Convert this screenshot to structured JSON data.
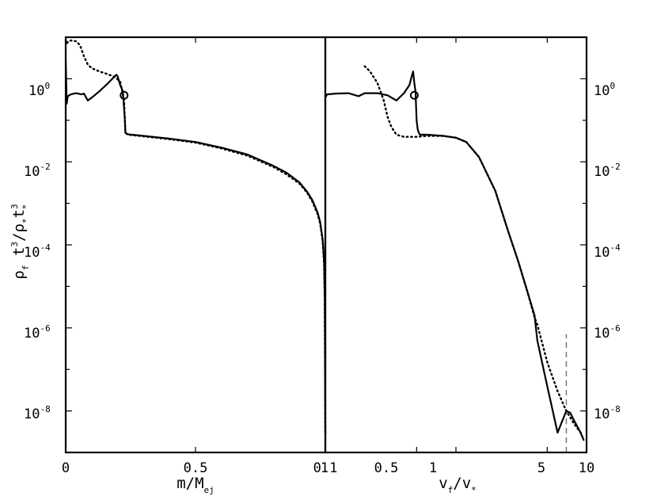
{
  "chart_data": [
    {
      "type": "line",
      "panel": "left",
      "xlabel": "m/M",
      "xlabel_sub": "ej",
      "ylabel": "ρ_f t^3/ρ_* t^3_*",
      "x_scale": "linear",
      "y_scale": "log",
      "xlim": [
        0,
        1
      ],
      "ylim": [
        1e-09,
        10
      ],
      "x_ticks": [
        {
          "value": 0,
          "label": "0"
        },
        {
          "value": 0.5,
          "label": "0.5"
        },
        {
          "value": 1,
          "label": "1"
        }
      ],
      "y_ticks": [
        {
          "value": 1,
          "base": "10",
          "exp": "0"
        },
        {
          "value": 0.01,
          "base": "10",
          "exp": "-2"
        },
        {
          "value": 0.0001,
          "base": "10",
          "exp": "-4"
        },
        {
          "value": 1e-06,
          "base": "10",
          "exp": "-6"
        },
        {
          "value": 1e-08,
          "base": "10",
          "exp": "-8"
        }
      ],
      "series": [
        {
          "style": "solid",
          "color": "#000000",
          "x": [
            0.0,
            0.004,
            0.008,
            0.02,
            0.04,
            0.06,
            0.07,
            0.085,
            0.1,
            0.13,
            0.16,
            0.18,
            0.195,
            0.2,
            0.205,
            0.21,
            0.22,
            0.228,
            0.23,
            0.24,
            0.3,
            0.4,
            0.5,
            0.6,
            0.7,
            0.8,
            0.85,
            0.9,
            0.93,
            0.95,
            0.97,
            0.98,
            0.99,
            0.995,
            0.998,
            1.0,
            1.001
          ],
          "y": [
            3.0,
            0.25,
            0.38,
            0.42,
            0.45,
            0.42,
            0.44,
            0.3,
            0.35,
            0.5,
            0.75,
            1.0,
            1.25,
            1.15,
            0.9,
            0.7,
            0.5,
            0.1,
            0.05,
            0.046,
            0.042,
            0.036,
            0.03,
            0.022,
            0.015,
            0.008,
            0.0055,
            0.0032,
            0.0019,
            0.0012,
            0.0006,
            0.00036,
            0.00013,
            4e-05,
            5e-06,
            3e-09,
            3e-09
          ]
        },
        {
          "style": "dotted",
          "color": "#000000",
          "x": [
            0.0,
            0.004,
            0.01,
            0.02,
            0.04,
            0.055,
            0.07,
            0.085,
            0.1,
            0.13,
            0.16,
            0.19,
            0.21,
            0.225,
            0.23,
            0.24,
            0.3,
            0.4,
            0.5,
            0.6,
            0.7,
            0.8,
            0.85,
            0.9,
            0.93,
            0.95,
            0.97,
            0.98,
            0.99,
            0.995,
            0.998,
            1.0
          ],
          "y": [
            8.5,
            7.0,
            8.0,
            8.4,
            8.0,
            6.5,
            3.5,
            2.2,
            1.8,
            1.5,
            1.3,
            1.1,
            0.85,
            0.3,
            0.05,
            0.045,
            0.041,
            0.035,
            0.029,
            0.021,
            0.014,
            0.0075,
            0.005,
            0.003,
            0.0018,
            0.0011,
            0.00055,
            0.00033,
            0.00012,
            3.5e-05,
            4e-06,
            3e-09
          ]
        }
      ],
      "markers": [
        {
          "shape": "circle",
          "x": 0.225,
          "y": 0.4
        }
      ]
    },
    {
      "type": "line",
      "panel": "right",
      "xlabel": "v",
      "xlabel_sub_1": "f",
      "xlabel_mid": "/v",
      "xlabel_sub_2": "*",
      "x_scale": "log",
      "y_scale": "log",
      "xlim": [
        0.1,
        10
      ],
      "ylim": [
        1e-09,
        10
      ],
      "x_ticks": [
        {
          "value": 0.1,
          "label": "0.1"
        },
        {
          "value": 0.5,
          "label": "0.5"
        },
        {
          "value": 1,
          "label": "1"
        },
        {
          "value": 5,
          "label": "5"
        },
        {
          "value": 10,
          "label": "10"
        }
      ],
      "y_ticks": [
        {
          "value": 1,
          "base": "10",
          "exp": "0"
        },
        {
          "value": 0.01,
          "base": "10",
          "exp": "-2"
        },
        {
          "value": 0.0001,
          "base": "10",
          "exp": "-4"
        },
        {
          "value": 1e-06,
          "base": "10",
          "exp": "-6"
        },
        {
          "value": 1e-08,
          "base": "10",
          "exp": "-8"
        }
      ],
      "series": [
        {
          "style": "solid",
          "color": "#000000",
          "x": [
            0.1,
            0.103,
            0.12,
            0.15,
            0.18,
            0.2,
            0.25,
            0.3,
            0.35,
            0.4,
            0.44,
            0.46,
            0.47,
            0.48,
            0.49,
            0.5,
            0.51,
            0.52,
            0.53,
            0.6,
            0.8,
            1.0,
            1.2,
            1.5,
            2.0,
            2.5,
            3.0,
            3.5,
            4.0,
            4.2,
            5.0,
            6.0,
            7.0,
            7.5,
            8.0,
            9.0,
            9.5
          ],
          "y": [
            0.35,
            0.42,
            0.44,
            0.45,
            0.38,
            0.45,
            0.45,
            0.4,
            0.3,
            0.45,
            0.7,
            1.2,
            1.5,
            0.8,
            0.5,
            0.1,
            0.06,
            0.05,
            0.045,
            0.045,
            0.042,
            0.038,
            0.03,
            0.013,
            0.002,
            0.00022,
            4e-05,
            8e-06,
            2e-06,
            5e-07,
            4e-08,
            3e-09,
            1e-08,
            9e-09,
            6e-09,
            3e-09,
            2e-09
          ]
        },
        {
          "style": "dotted",
          "color": "#000000",
          "x": [
            0.2,
            0.22,
            0.25,
            0.28,
            0.3,
            0.32,
            0.35,
            0.4,
            0.5,
            0.6,
            0.8,
            1.0,
            1.2,
            1.5,
            2.0,
            2.5,
            3.0,
            3.5,
            4.0,
            4.2,
            5.0,
            6.0,
            7.0,
            8.0,
            9.0,
            9.5
          ],
          "y": [
            2.0,
            1.5,
            0.8,
            0.3,
            0.12,
            0.07,
            0.045,
            0.04,
            0.04,
            0.042,
            0.042,
            0.038,
            0.03,
            0.013,
            0.002,
            0.00022,
            4e-05,
            8e-06,
            1.8e-06,
            1.2e-06,
            1.5e-07,
            3e-08,
            1e-08,
            5e-09,
            3e-09,
            2e-09
          ]
        }
      ],
      "markers": [
        {
          "shape": "circle",
          "x": 0.48,
          "y": 0.4
        }
      ],
      "reference_lines": [
        {
          "style": "dashed",
          "color": "#777777",
          "x": 7.0,
          "y_from": 1e-09,
          "y_to": 7e-07
        }
      ]
    }
  ]
}
